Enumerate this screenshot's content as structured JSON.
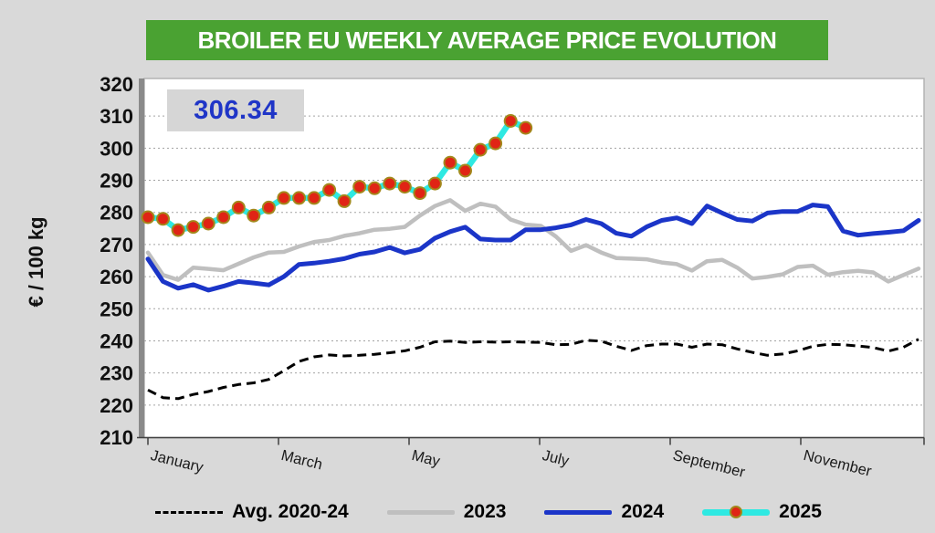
{
  "header": {
    "title": "BROILER EU WEEKLY AVERAGE PRICE EVOLUTION"
  },
  "annotation": {
    "latest_price": "306.34"
  },
  "y_axis": {
    "unit_label": "€ / 100 kg"
  },
  "colors": {
    "title_bar": "#4aa232",
    "annotation_text": "#1f35c7",
    "background": "#d9d9d9",
    "plot_background": "#ffffff"
  },
  "legend": [
    {
      "label": "Avg. 2020-24",
      "style": "dashed",
      "color": "#000000"
    },
    {
      "label": "2023",
      "style": "solid",
      "color": "#bfbfbf"
    },
    {
      "label": "2024",
      "style": "solid",
      "color": "#1b35c8"
    },
    {
      "label": "2025",
      "style": "marker",
      "color": "#2ee9e2",
      "marker_color": "#e02415",
      "marker_ring": "#a3881c"
    }
  ],
  "chart_data": {
    "type": "line",
    "title": "BROILER EU WEEKLY AVERAGE PRICE EVOLUTION",
    "ylabel": "€ / 100 kg",
    "x_unit": "week of year (52 weeks)",
    "month_labels": [
      "January",
      "March",
      "May",
      "July",
      "September",
      "November"
    ],
    "ylim": [
      210,
      320
    ],
    "ytick_step": 10,
    "grid": "horizontal-dashed",
    "legend_position": "bottom",
    "annotation": "306.34 = latest 2025 weekly price",
    "series": [
      {
        "name": "Avg. 2020-24",
        "color": "#000000",
        "width": 3,
        "dash": "10 6",
        "values": [
          224.7,
          222.3,
          222.0,
          223.3,
          224.2,
          225.5,
          226.4,
          226.9,
          228.0,
          230.7,
          233.6,
          235.0,
          235.6,
          235.3,
          235.5,
          235.8,
          236.3,
          236.9,
          238.0,
          239.7,
          239.9,
          239.5,
          239.7,
          239.6,
          239.7,
          239.6,
          239.5,
          238.8,
          238.9,
          240.2,
          239.9,
          238.3,
          237.0,
          238.5,
          239.0,
          239.0,
          238.0,
          239.0,
          238.8,
          237.5,
          236.4,
          235.5,
          235.9,
          236.9,
          238.3,
          238.9,
          238.8,
          238.4,
          237.9,
          236.8,
          238.0,
          240.5
        ]
      },
      {
        "name": "2023",
        "color": "#bfbfbf",
        "width": 4.5,
        "dash": null,
        "values": [
          267.5,
          260.5,
          259.0,
          262.8,
          262.4,
          262.0,
          264.0,
          266.0,
          267.5,
          267.7,
          269.4,
          270.8,
          271.4,
          272.7,
          273.5,
          274.6,
          274.9,
          275.5,
          279.0,
          282.0,
          283.8,
          280.5,
          282.7,
          281.8,
          277.8,
          276.2,
          275.8,
          272.5,
          268.0,
          269.8,
          267.5,
          265.8,
          265.6,
          265.4,
          264.4,
          263.9,
          261.9,
          264.8,
          265.2,
          262.8,
          259.4,
          259.9,
          260.7,
          263.0,
          263.4,
          260.6,
          261.4,
          261.8,
          261.3,
          258.5,
          260.5,
          262.5
        ]
      },
      {
        "name": "2024",
        "color": "#1b35c8",
        "width": 5,
        "dash": null,
        "values": [
          265.5,
          258.5,
          256.4,
          257.5,
          255.8,
          257.0,
          258.5,
          258.0,
          257.4,
          260.0,
          263.8,
          264.2,
          264.8,
          265.6,
          267.0,
          267.7,
          269.1,
          267.4,
          268.5,
          272.0,
          274.0,
          275.4,
          271.7,
          271.4,
          271.4,
          274.6,
          274.6,
          275.2,
          276.1,
          277.8,
          276.5,
          273.5,
          272.6,
          275.5,
          277.5,
          278.3,
          276.5,
          282.0,
          279.8,
          277.8,
          277.3,
          279.8,
          280.3,
          280.3,
          282.3,
          281.8,
          274.2,
          272.9,
          273.4,
          273.8,
          274.3,
          277.5
        ]
      },
      {
        "name": "2025",
        "color": "#2ee9e2",
        "width": 6.5,
        "dash": null,
        "markers": {
          "fill": "#e02415",
          "stroke": "#a3881c",
          "radius": 6.5
        },
        "values": [
          278.5,
          278.0,
          274.5,
          275.5,
          276.5,
          278.5,
          281.5,
          279.0,
          281.5,
          284.5,
          284.5,
          284.5,
          287.0,
          283.5,
          288.0,
          287.5,
          289.0,
          288.0,
          286.0,
          289.0,
          295.5,
          293.0,
          299.5,
          301.5,
          308.5,
          306.34
        ]
      }
    ]
  }
}
